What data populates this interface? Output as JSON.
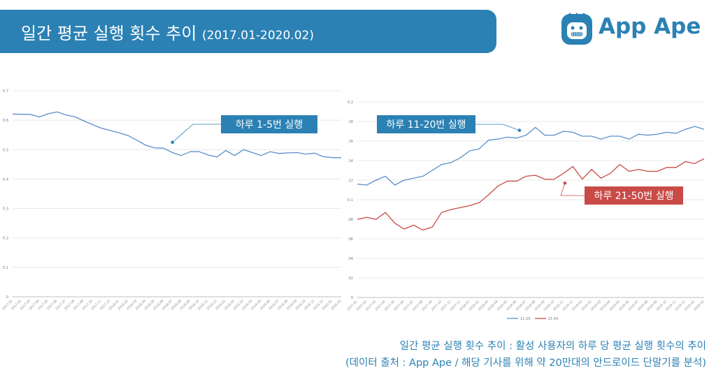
{
  "header": {
    "title": "일간 평균 실행 횟수 추이",
    "period": "(2017.01-2020.02)",
    "logo_text": "App Ape"
  },
  "footer": {
    "line1": "일간 평균 실행 횟수 추이 : 활성 사용자의 하루 당 평균 실행 횟수의 추이",
    "line2": "(데이터 출처 : App Ape / 해당 기사를 위해 약 20만대의 안드로이드 단말기를 분석)"
  },
  "colors": {
    "accent": "#2b81b4",
    "series_blue": "#5b8fcb",
    "series_red": "#c94b48"
  },
  "chart_data": [
    {
      "type": "line",
      "title": "",
      "categories": [
        "2017.01",
        "2017.02",
        "2017.03",
        "2017.04",
        "2017.05",
        "2017.06",
        "2017.07",
        "2017.08",
        "2017.09",
        "2017.10",
        "2017.11",
        "2017.12",
        "2018.01",
        "2018.02",
        "2018.03",
        "2018.04",
        "2018.05",
        "2018.06",
        "2018.07",
        "2018.08",
        "2018.09",
        "2018.10",
        "2018.11",
        "2018.12",
        "2019.01",
        "2019.02",
        "2019.03",
        "2019.04",
        "2019.05",
        "2019.06",
        "2019.07",
        "2019.08",
        "2019.09",
        "2019.10",
        "2019.11",
        "2019.12",
        "2020.01",
        "2020.02"
      ],
      "yticks": [
        "0",
        "0.1",
        "0.2",
        "0.3",
        "0.4",
        "0.5",
        "0.6",
        "0.7"
      ],
      "ylim": [
        0,
        0.7
      ],
      "series": [
        {
          "name": "1-5",
          "values": [
            0.621,
            0.62,
            0.62,
            0.611,
            0.622,
            0.628,
            0.618,
            0.612,
            0.598,
            0.585,
            0.573,
            0.565,
            0.557,
            0.548,
            0.532,
            0.515,
            0.506,
            0.505,
            0.49,
            0.48,
            0.493,
            0.493,
            0.482,
            0.475,
            0.497,
            0.48,
            0.5,
            0.49,
            0.48,
            0.493,
            0.487,
            0.489,
            0.49,
            0.485,
            0.488,
            0.476,
            0.473,
            0.473
          ]
        }
      ],
      "annotation": "하루 1-5번 실행"
    },
    {
      "type": "line",
      "title": "",
      "categories": [
        "2017.01",
        "2017.02",
        "2017.03",
        "2017.04",
        "2017.05",
        "2017.06",
        "2017.07",
        "2017.08",
        "2017.09",
        "2017.10",
        "2017.11",
        "2017.12",
        "2018.01",
        "2018.02",
        "2018.03",
        "2018.04",
        "2018.05",
        "2018.06",
        "2018.07",
        "2018.08",
        "2018.09",
        "2018.10",
        "2018.11",
        "2018.12",
        "2019.01",
        "2019.02",
        "2019.03",
        "2019.04",
        "2019.05",
        "2019.06",
        "2019.07",
        "2019.08",
        "2019.09",
        "2019.10",
        "2019.11",
        "2019.12",
        "2020.01",
        "2020.02"
      ],
      "yticks": [
        "0",
        "0.02",
        "0.04",
        "0.06",
        "0.08",
        "0.1",
        "0.12",
        "0.14",
        "0.16",
        "0.18",
        "0.2"
      ],
      "ylim": [
        0,
        0.2
      ],
      "series": [
        {
          "name": "11-20",
          "values": [
            0.116,
            0.115,
            0.12,
            0.124,
            0.115,
            0.12,
            0.122,
            0.124,
            0.13,
            0.136,
            0.138,
            0.143,
            0.15,
            0.152,
            0.161,
            0.162,
            0.164,
            0.163,
            0.166,
            0.174,
            0.166,
            0.166,
            0.17,
            0.169,
            0.165,
            0.165,
            0.162,
            0.165,
            0.165,
            0.162,
            0.167,
            0.166,
            0.167,
            0.169,
            0.168,
            0.172,
            0.175,
            0.172
          ]
        },
        {
          "name": "21-50",
          "values": [
            0.08,
            0.082,
            0.08,
            0.087,
            0.076,
            0.07,
            0.074,
            0.069,
            0.072,
            0.087,
            0.09,
            0.092,
            0.094,
            0.097,
            0.105,
            0.114,
            0.119,
            0.119,
            0.124,
            0.125,
            0.121,
            0.121,
            0.127,
            0.134,
            0.121,
            0.131,
            0.122,
            0.127,
            0.136,
            0.129,
            0.131,
            0.129,
            0.129,
            0.133,
            0.133,
            0.139,
            0.137,
            0.142
          ]
        }
      ],
      "legend": [
        "11-20",
        "21-50"
      ],
      "annotations": [
        "하루 11-20번 실행",
        "하루 21-50번 실행"
      ]
    }
  ]
}
